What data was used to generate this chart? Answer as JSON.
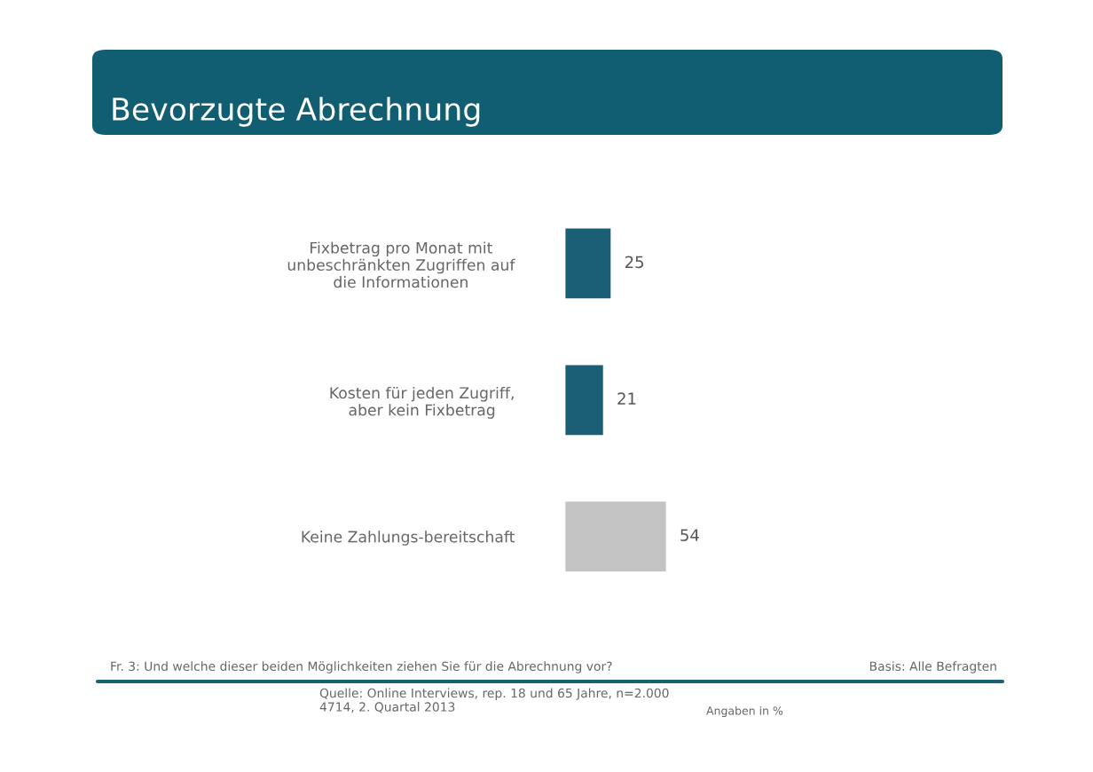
{
  "chart_data": {
    "type": "bar",
    "orientation": "horizontal",
    "title": "Bevorzugte Abrechnung",
    "categories": [
      "Fixbetrag pro Monat mit\nunbeschränkten Zugriffen auf\ndie Informationen",
      "Kosten für jeden Zugriff,\naber kein Fixbetrag",
      "Keine Zahlungs-bereitschaft"
    ],
    "values": [
      25,
      21,
      54
    ],
    "colors": [
      "#1a5f75",
      "#1a5f75",
      "#c3c3c3"
    ],
    "data_labels": true,
    "grid": false,
    "legend": false,
    "tick_labels": "y",
    "annotations": [
      "Fr. 3: Und welche dieser beiden Möglichkeiten ziehen Sie für die Abrechnung vor?",
      "Basis: Alle Befragten",
      "Quelle: Online Interviews, rep. 18 und 65 Jahre, n=2.000\n4714, 2. Quartal 2013",
      "Angaben in %"
    ]
  }
}
